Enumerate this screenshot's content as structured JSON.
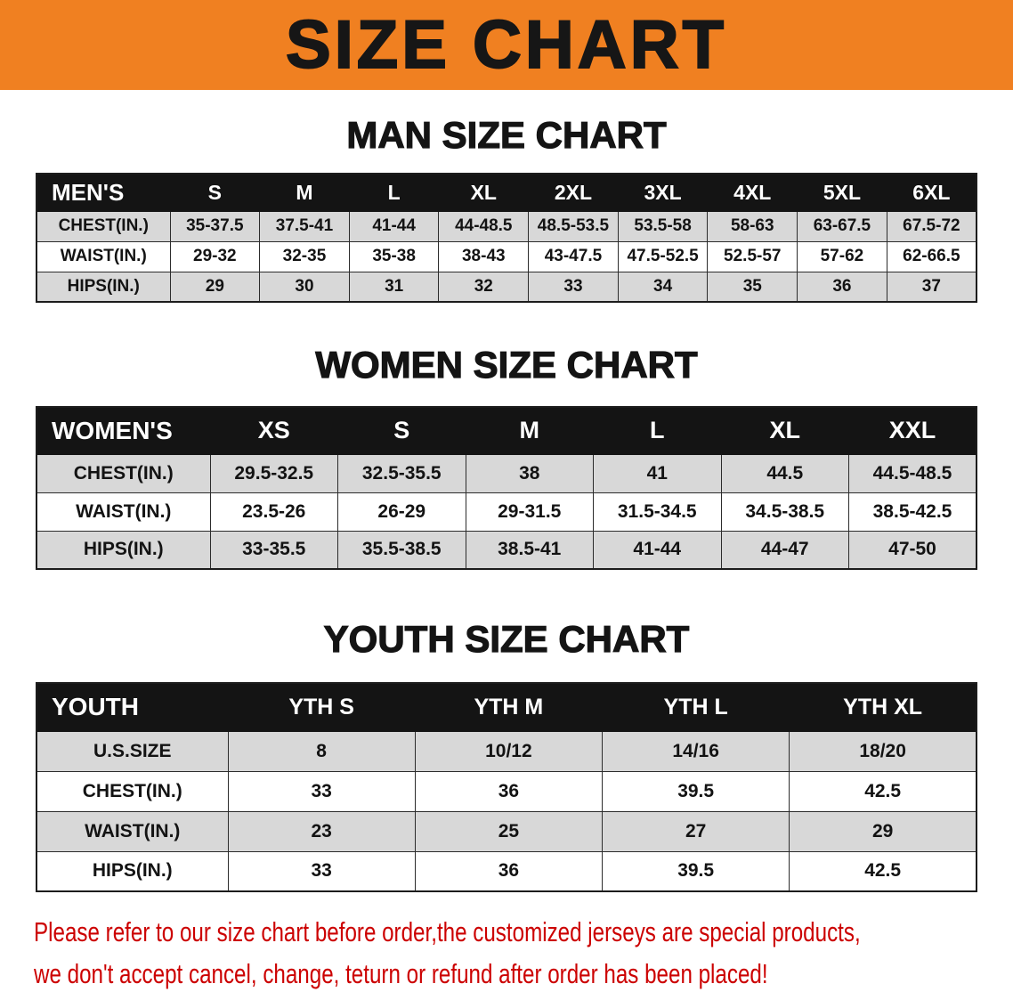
{
  "banner": {
    "title": "SIZE CHART"
  },
  "men": {
    "heading": "MAN SIZE CHART",
    "table": {
      "header": [
        "MEN'S",
        "S",
        "M",
        "L",
        "XL",
        "2XL",
        "3XL",
        "4XL",
        "5XL",
        "6XL"
      ],
      "rows": [
        [
          "CHEST(IN.)",
          "35-37.5",
          "37.5-41",
          "41-44",
          "44-48.5",
          "48.5-53.5",
          "53.5-58",
          "58-63",
          "63-67.5",
          "67.5-72"
        ],
        [
          "WAIST(IN.)",
          "29-32",
          "32-35",
          "35-38",
          "38-43",
          "43-47.5",
          "47.5-52.5",
          "52.5-57",
          "57-62",
          "62-66.5"
        ],
        [
          "HIPS(IN.)",
          "29",
          "30",
          "31",
          "32",
          "33",
          "34",
          "35",
          "36",
          "37"
        ]
      ]
    }
  },
  "women": {
    "heading": "WOMEN SIZE CHART",
    "table": {
      "header": [
        "WOMEN'S",
        "XS",
        "S",
        "M",
        "L",
        "XL",
        "XXL"
      ],
      "rows": [
        [
          "CHEST(IN.)",
          "29.5-32.5",
          "32.5-35.5",
          "38",
          "41",
          "44.5",
          "44.5-48.5"
        ],
        [
          "WAIST(IN.)",
          "23.5-26",
          "26-29",
          "29-31.5",
          "31.5-34.5",
          "34.5-38.5",
          "38.5-42.5"
        ],
        [
          "HIPS(IN.)",
          "33-35.5",
          "35.5-38.5",
          "38.5-41",
          "41-44",
          "44-47",
          "47-50"
        ]
      ]
    }
  },
  "youth": {
    "heading": "YOUTH SIZE CHART",
    "table": {
      "header": [
        "YOUTH",
        "YTH S",
        "YTH M",
        "YTH L",
        "YTH XL"
      ],
      "rows": [
        [
          "U.S.SIZE",
          "8",
          "10/12",
          "14/16",
          "18/20"
        ],
        [
          "CHEST(IN.)",
          "33",
          "36",
          "39.5",
          "42.5"
        ],
        [
          "WAIST(IN.)",
          "23",
          "25",
          "27",
          "29"
        ],
        [
          "HIPS(IN.)",
          "33",
          "36",
          "39.5",
          "42.5"
        ]
      ]
    }
  },
  "footer": {
    "lines": [
      "Please refer to our size chart before order,the customized jerseys are special products,",
      "we don't accept cancel, change, teturn or refund after order has been placed!"
    ]
  },
  "colors": {
    "banner_bg": "#f08021",
    "header_bg": "#141414",
    "row_alt_bg": "#d8d8d8",
    "footer_text": "#cc0000"
  }
}
